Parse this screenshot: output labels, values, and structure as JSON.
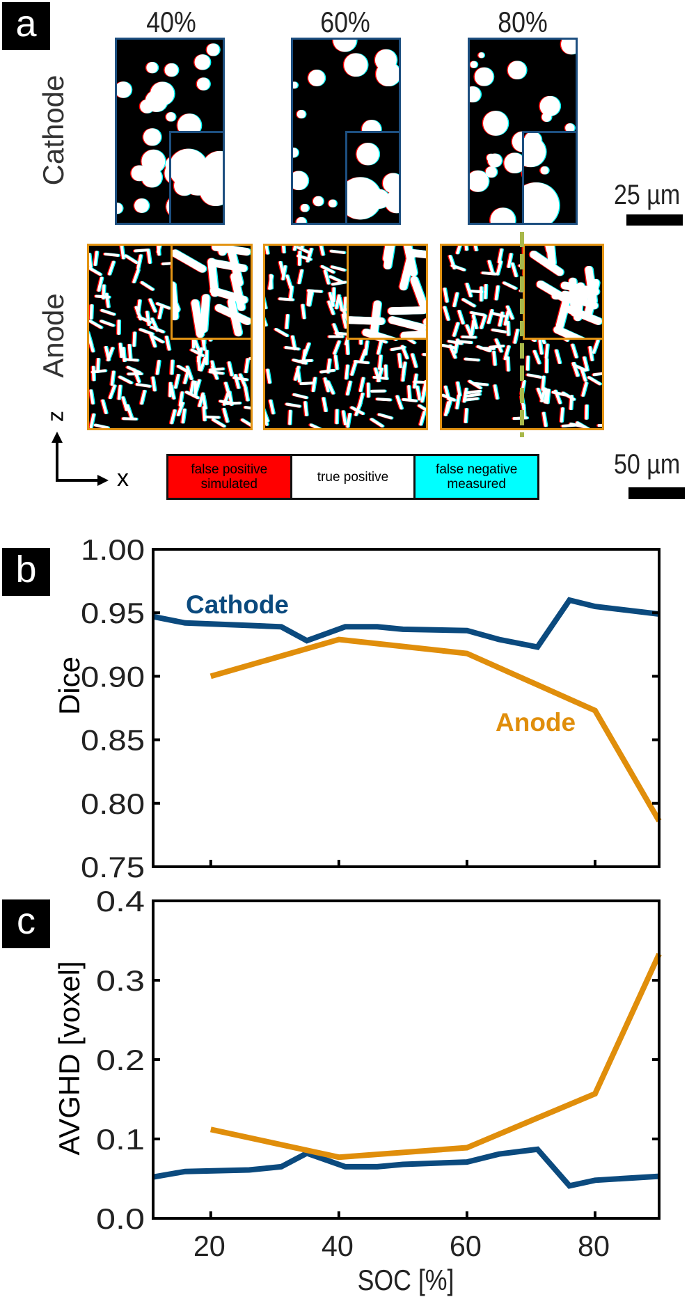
{
  "panel_a": {
    "label": "a",
    "soc_labels": [
      "40%",
      "60%",
      "80%"
    ],
    "row_labels": {
      "cathode": "Cathode",
      "anode": "Anode"
    },
    "scale_bars": {
      "cathode": "25 µm",
      "anode": "50 µm"
    },
    "axes": {
      "vertical": "z",
      "horizontal": "x"
    },
    "legend": [
      {
        "label": "false positive simulated",
        "color": "#ff0000"
      },
      {
        "label": "true positive",
        "color": "#ffffff"
      },
      {
        "label": "false negative measured",
        "color": "#00ffff"
      }
    ],
    "colors": {
      "cathode_frame": "#1d4f80",
      "anode_frame": "#e39414",
      "cut_line": "#a8b84a"
    }
  },
  "chart_data": [
    {
      "panel_label": "b",
      "type": "line",
      "xlabel": "",
      "ylabel": "Dice",
      "xlim": [
        11,
        90
      ],
      "ylim": [
        0.75,
        1.0
      ],
      "xticks": [
        20,
        40,
        60,
        80
      ],
      "yticks": [
        "0.75",
        "0.80",
        "0.85",
        "0.90",
        "0.95",
        "1.00"
      ],
      "xtick_labels_shown": false,
      "grid": false,
      "series": [
        {
          "name": "Cathode",
          "color": "#0b4a7e",
          "x": [
            11,
            16,
            26,
            31,
            35,
            41,
            46,
            50,
            60,
            65,
            71,
            76,
            80,
            90
          ],
          "y": [
            0.947,
            0.942,
            0.94,
            0.939,
            0.928,
            0.939,
            0.939,
            0.937,
            0.936,
            0.929,
            0.923,
            0.96,
            0.955,
            0.949
          ]
        },
        {
          "name": "Anode",
          "color": "#e08e0b",
          "x": [
            20,
            40,
            60,
            80,
            90
          ],
          "y": [
            0.9,
            0.929,
            0.918,
            0.873,
            0.786
          ]
        }
      ]
    },
    {
      "panel_label": "c",
      "type": "line",
      "xlabel": "SOC [%]",
      "ylabel": "AVGHD [voxel]",
      "xlim": [
        11,
        90
      ],
      "ylim": [
        0.0,
        0.4
      ],
      "xticks": [
        20,
        40,
        60,
        80
      ],
      "yticks": [
        "0.0",
        "0.1",
        "0.2",
        "0.3",
        "0.4"
      ],
      "xtick_labels_shown": true,
      "grid": false,
      "series": [
        {
          "color": "#0b4a7e",
          "x": [
            11,
            16,
            26,
            31,
            35,
            41,
            46,
            50,
            60,
            65,
            71,
            76,
            80,
            90
          ],
          "y": [
            0.052,
            0.059,
            0.061,
            0.065,
            0.082,
            0.065,
            0.065,
            0.068,
            0.071,
            0.081,
            0.087,
            0.041,
            0.048,
            0.053
          ]
        },
        {
          "color": "#e08e0b",
          "x": [
            20,
            40,
            60,
            80,
            90
          ],
          "y": [
            0.112,
            0.077,
            0.089,
            0.157,
            0.333
          ]
        }
      ]
    }
  ]
}
